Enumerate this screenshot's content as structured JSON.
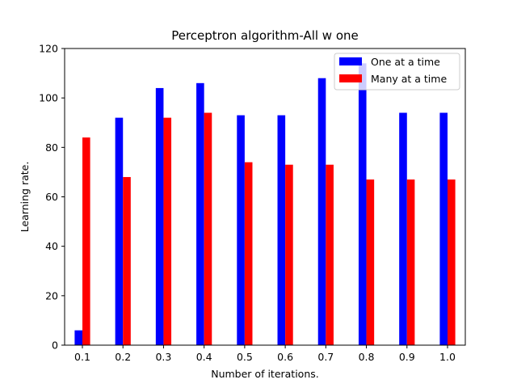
{
  "chart_data": {
    "type": "bar",
    "title": "Perceptron algorithm-All w one",
    "xlabel": "Number of iterations.",
    "ylabel": "Learning rate.",
    "categories": [
      "0.1",
      "0.2",
      "0.3",
      "0.4",
      "0.5",
      "0.6",
      "0.7",
      "0.8",
      "0.9",
      "1.0"
    ],
    "series": [
      {
        "name": "One at a time",
        "color": "#0000ff",
        "values": [
          6,
          92,
          104,
          106,
          93,
          93,
          108,
          114,
          94,
          94
        ]
      },
      {
        "name": "Many at a time",
        "color": "#ff0000",
        "values": [
          84,
          68,
          92,
          94,
          74,
          73,
          73,
          67,
          67,
          67
        ]
      }
    ],
    "ylim": [
      0,
      120
    ],
    "yticks": [
      "0",
      "20",
      "40",
      "60",
      "80",
      "100",
      "120"
    ],
    "grid": false,
    "legend_position": "top-right"
  }
}
